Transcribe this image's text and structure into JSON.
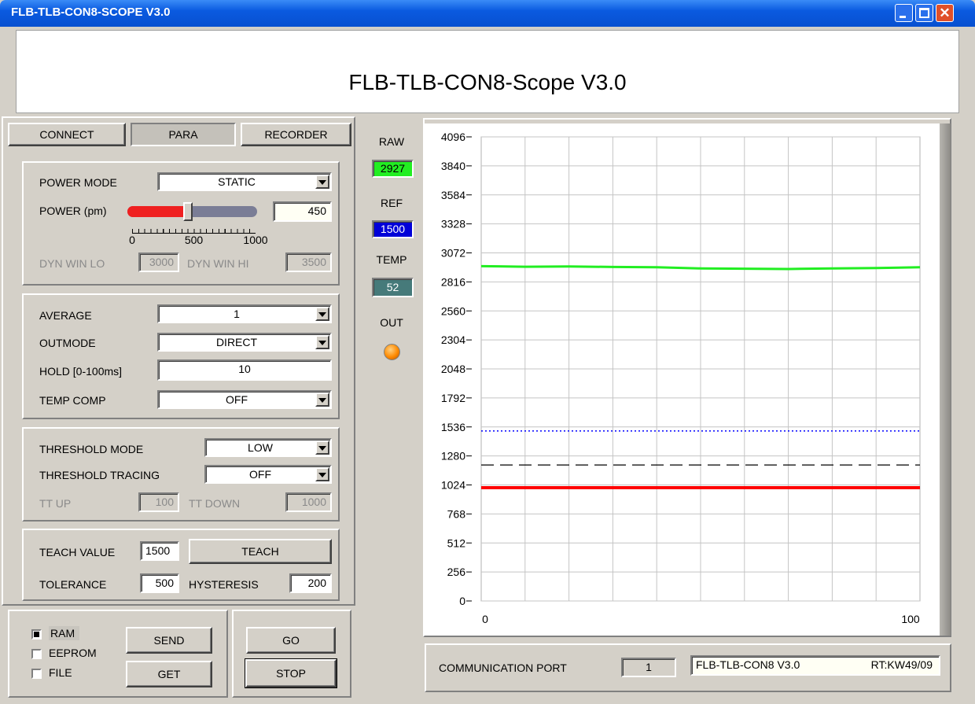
{
  "window": {
    "title": "FLB-TLB-CON8-SCOPE V3.0"
  },
  "header": {
    "title": "FLB-TLB-CON8-Scope V3.0"
  },
  "tabs": [
    "CONNECT",
    "PARA",
    "RECORDER"
  ],
  "power": {
    "mode_label": "POWER MODE",
    "mode": "STATIC",
    "power_label": "POWER (pm)",
    "power": 450,
    "slider_ticks": [
      0,
      500,
      1000
    ],
    "dyn_lo_label": "DYN WIN LO",
    "dyn_lo": "3000",
    "dyn_hi_label": "DYN WIN HI",
    "dyn_hi": "3500"
  },
  "signal": {
    "average_label": "AVERAGE",
    "average": "1",
    "outmode_label": "OUTMODE",
    "outmode": "DIRECT",
    "hold_label": "HOLD [0-100ms]",
    "hold": "10",
    "temp_comp_label": "TEMP COMP",
    "temp_comp": "OFF"
  },
  "threshold": {
    "mode_label": "THRESHOLD MODE",
    "mode": "LOW",
    "tracing_label": "THRESHOLD TRACING",
    "tracing": "OFF",
    "tt_up_label": "TT UP",
    "tt_up": "100",
    "tt_down_label": "TT DOWN",
    "tt_down": "1000"
  },
  "teach": {
    "teach_value_label": "TEACH VALUE",
    "teach_value": "1500",
    "button": "TEACH",
    "tolerance_label": "TOLERANCE",
    "tolerance": "500",
    "hysteresis_label": "HYSTERESIS",
    "hysteresis": "200"
  },
  "memory": {
    "options": [
      {
        "label": "RAM",
        "checked": true
      },
      {
        "label": "EEPROM",
        "checked": false
      },
      {
        "label": "FILE",
        "checked": false
      }
    ],
    "buttons": [
      "SEND",
      "GET"
    ]
  },
  "control": {
    "buttons": [
      "GO",
      "STOP"
    ]
  },
  "monitor": {
    "raw_label": "RAW",
    "raw": "2927",
    "ref_label": "REF",
    "ref": "1500",
    "temp_label": "TEMP",
    "temp": "52",
    "out_label": "OUT"
  },
  "status": {
    "port_label": "COMMUNICATION PORT",
    "port": "1",
    "device": "FLB-TLB-CON8 V3.0",
    "firmware": "RT:KW49/09"
  },
  "chart_data": {
    "type": "line",
    "xlim": [
      0,
      100
    ],
    "xticks": [
      0,
      100
    ],
    "xgrid": [
      10,
      20,
      30,
      40,
      50,
      60,
      70,
      80,
      90
    ],
    "ylim": [
      0,
      4096
    ],
    "yticks": [
      0,
      256,
      512,
      768,
      1024,
      1280,
      1536,
      1792,
      2048,
      2304,
      2560,
      2816,
      3072,
      3328,
      3584,
      3840,
      4096
    ],
    "grid": true,
    "series": [
      {
        "color": "#22ee22",
        "style": "solid",
        "width": 3,
        "x": [
          0,
          10,
          20,
          30,
          40,
          50,
          60,
          70,
          80,
          90,
          100
        ],
        "values": [
          2955,
          2950,
          2952,
          2948,
          2945,
          2935,
          2932,
          2930,
          2935,
          2938,
          2945
        ]
      },
      {
        "color": "#0000ff",
        "style": "dotted",
        "width": 1.5,
        "x": [
          0,
          100
        ],
        "values": [
          1500,
          1500
        ]
      },
      {
        "color": "#000000",
        "style": "dashed",
        "width": 1.2,
        "x": [
          0,
          100
        ],
        "values": [
          1200,
          1200
        ]
      },
      {
        "color": "#ff0000",
        "style": "solid",
        "width": 4,
        "x": [
          0,
          100
        ],
        "values": [
          1000,
          1000
        ]
      }
    ]
  }
}
